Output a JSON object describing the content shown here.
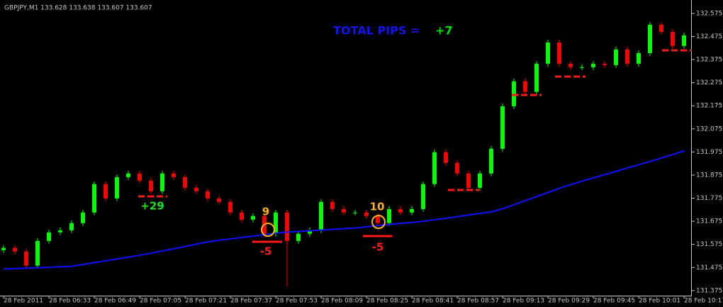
{
  "chart_data": {
    "type": "candlestick",
    "header": "GBPJPY,M1  133.628 133.638 133.607 133.607",
    "categories": [
      "28 Feb 2011",
      null,
      null,
      null,
      "28 Feb 06:33",
      null,
      null,
      null,
      "28 Feb 06:49",
      null,
      null,
      null,
      "28 Feb 07:05",
      null,
      null,
      null,
      "28 Feb 07:21",
      null,
      null,
      null,
      "28 Feb 07:37",
      null,
      null,
      null,
      "28 Feb 07:53",
      null,
      null,
      null,
      "28 Feb 08:09",
      null,
      null,
      null,
      "28 Feb 08:25",
      null,
      null,
      null,
      "28 Feb 08:41",
      null,
      null,
      null,
      "28 Feb 08:57",
      null,
      null,
      null,
      "28 Feb 09:13",
      null,
      null,
      null,
      "28 Feb 09:29",
      null,
      null,
      null,
      "28 Feb 09:45",
      null,
      null,
      null,
      "28 Feb 10:01",
      null,
      null,
      null,
      "28 Feb 10:17"
    ],
    "open": [
      131.55,
      131.56,
      131.544,
      131.483,
      131.59,
      131.627,
      131.636,
      131.667,
      131.713,
      131.836,
      131.774,
      131.866,
      131.882,
      131.851,
      131.805,
      131.882,
      131.866,
      131.82,
      131.805,
      131.774,
      131.759,
      131.713,
      131.682,
      131.698,
      131.621,
      131.713,
      131.59,
      131.621,
      131.636,
      131.759,
      131.728,
      131.713,
      131.713,
      131.698,
      131.667,
      131.728,
      131.713,
      131.728,
      131.836,
      131.974,
      131.928,
      131.882,
      131.82,
      131.882,
      131.989,
      132.173,
      132.281,
      132.235,
      132.357,
      132.449,
      132.357,
      132.342,
      132.342,
      132.357,
      132.351,
      132.419,
      132.357,
      132.403,
      132.526,
      132.495,
      132.434
    ],
    "high": [
      131.572,
      131.572,
      131.556,
      131.602,
      131.639,
      131.648,
      131.679,
      131.725,
      131.848,
      131.848,
      131.878,
      131.894,
      131.894,
      131.863,
      131.894,
      131.894,
      131.878,
      131.832,
      131.817,
      131.786,
      131.771,
      131.725,
      131.71,
      131.71,
      131.725,
      131.725,
      131.633,
      131.648,
      131.771,
      131.771,
      131.74,
      131.725,
      131.725,
      131.71,
      131.74,
      131.74,
      131.74,
      131.848,
      131.986,
      131.986,
      131.94,
      131.894,
      131.894,
      132.001,
      132.185,
      132.293,
      132.293,
      132.369,
      132.461,
      132.461,
      132.369,
      132.354,
      132.369,
      132.369,
      132.431,
      132.431,
      132.415,
      132.538,
      132.538,
      132.507,
      132.492
    ],
    "low": [
      131.538,
      131.532,
      131.471,
      131.471,
      131.578,
      131.615,
      131.624,
      131.655,
      131.701,
      131.762,
      131.762,
      131.854,
      131.839,
      131.793,
      131.793,
      131.854,
      131.808,
      131.793,
      131.762,
      131.747,
      131.701,
      131.67,
      131.67,
      131.609,
      131.609,
      131.395,
      131.578,
      131.609,
      131.624,
      131.716,
      131.701,
      131.701,
      131.686,
      131.655,
      131.655,
      131.701,
      131.701,
      131.716,
      131.824,
      131.916,
      131.87,
      131.808,
      131.808,
      131.87,
      131.977,
      132.161,
      132.223,
      132.223,
      132.345,
      132.345,
      132.33,
      132.33,
      132.33,
      132.339,
      132.339,
      132.345,
      132.345,
      132.391,
      132.483,
      132.422,
      132.422
    ],
    "close": [
      131.56,
      131.544,
      131.483,
      131.59,
      131.627,
      131.636,
      131.667,
      131.713,
      131.836,
      131.774,
      131.866,
      131.882,
      131.851,
      131.805,
      131.882,
      131.866,
      131.82,
      131.805,
      131.774,
      131.759,
      131.713,
      131.682,
      131.698,
      131.621,
      131.713,
      131.59,
      131.621,
      131.636,
      131.759,
      131.728,
      131.713,
      131.713,
      131.698,
      131.667,
      131.728,
      131.713,
      131.728,
      131.836,
      131.974,
      131.928,
      131.882,
      131.82,
      131.882,
      131.989,
      132.173,
      132.281,
      132.235,
      132.357,
      132.449,
      132.357,
      132.342,
      132.342,
      132.357,
      132.351,
      132.419,
      132.357,
      132.403,
      132.526,
      132.495,
      132.434,
      132.48
    ],
    "up_color": "#00ff00",
    "down_color": "#ff0000",
    "ma": {
      "color": "#1010ff",
      "values": [
        131.468,
        131.47,
        131.472,
        131.474,
        131.476,
        131.478,
        131.48,
        131.488,
        131.496,
        131.504,
        131.512,
        131.52,
        131.528,
        131.537,
        131.547,
        131.556,
        131.566,
        131.576,
        131.586,
        131.593,
        131.599,
        131.605,
        131.611,
        131.617,
        131.623,
        131.628,
        131.631,
        131.634,
        131.637,
        131.64,
        131.643,
        131.646,
        131.651,
        131.656,
        131.661,
        131.666,
        131.67,
        131.675,
        131.682,
        131.688,
        131.695,
        131.702,
        131.709,
        131.716,
        131.729,
        131.747,
        131.764,
        131.782,
        131.8,
        131.818,
        131.834,
        131.849,
        131.863,
        131.877,
        131.891,
        131.906,
        131.92,
        131.934,
        131.949,
        131.964,
        131.98
      ]
    },
    "ylim": [
      131.353,
      132.633
    ],
    "yticks": [
      131.375,
      131.475,
      131.575,
      131.675,
      131.775,
      131.875,
      131.975,
      132.075,
      132.175,
      132.275,
      132.375,
      132.475,
      132.575
    ],
    "annotations": {
      "total_pips_label": "TOTAL PIPS =",
      "total_pips": "+7",
      "trade1_result": "+29",
      "trade2_count": "9",
      "trade2_result": "-5",
      "trade3_count": "10",
      "trade3_result": "-5"
    }
  }
}
